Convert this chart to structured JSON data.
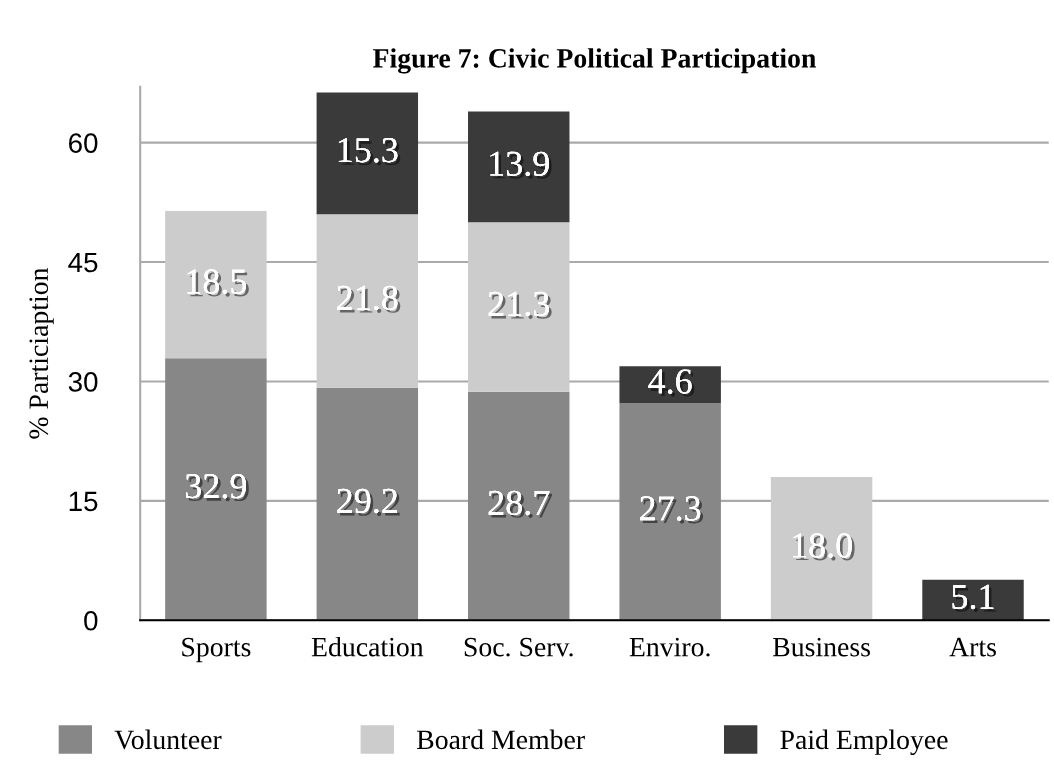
{
  "chart_data": {
    "type": "bar",
    "title": "Figure 7: Civic Political Participation",
    "ylabel": "% Particiaption",
    "categories": [
      "Sports",
      "Education",
      "Soc. Serv.",
      "Enviro.",
      "Business",
      "Arts"
    ],
    "stacked": true,
    "ylim": [
      0,
      67
    ],
    "yticks": [
      0,
      15,
      30,
      45,
      60
    ],
    "grid": "y",
    "legend": "bottom",
    "series": [
      {
        "name": "Volunteer",
        "color": "#878787",
        "values": [
          32.9,
          29.2,
          28.7,
          27.3,
          null,
          null
        ],
        "value_labels": [
          "32.9",
          "29.2",
          "28.7",
          "27.3",
          null,
          null
        ]
      },
      {
        "name": "Board Member",
        "color": "#cccccc",
        "values": [
          18.5,
          21.8,
          21.3,
          null,
          18.0,
          null
        ],
        "value_labels": [
          "18.5",
          "21.8",
          "21.3",
          null,
          "18.0",
          null
        ]
      },
      {
        "name": "Paid Employee",
        "color": "#3a3a3a",
        "values": [
          null,
          15.3,
          13.9,
          4.6,
          null,
          5.1
        ],
        "value_labels": [
          null,
          "15.3",
          "13.9",
          "4.6",
          null,
          "5.1"
        ]
      }
    ]
  }
}
